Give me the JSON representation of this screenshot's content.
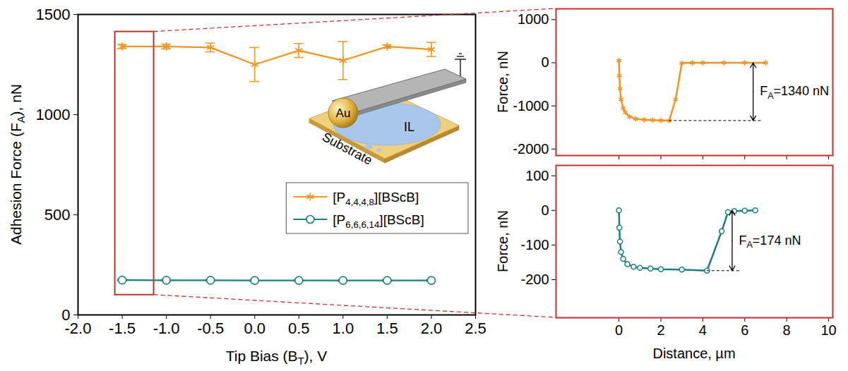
{
  "chart_data": [
    {
      "type": "line",
      "x_label": "Tip Bias (BT), V",
      "y_label": "Adhesion Force (FA), nN",
      "x": [
        -1.5,
        -1,
        -0.5,
        0,
        0.5,
        1,
        1.5,
        2
      ],
      "xlim": [
        -2,
        2.5
      ],
      "xticks": [
        {
          "value": -2,
          "label": "-2.0"
        },
        {
          "value": -1.5,
          "label": "-1.5"
        },
        {
          "value": -1,
          "label": "-1.0"
        },
        {
          "value": -0.5,
          "label": "-0.5"
        },
        {
          "value": 0,
          "label": "0.0"
        },
        {
          "value": 0.5,
          "label": "0.5"
        },
        {
          "value": 1,
          "label": "1.0"
        },
        {
          "value": 1.5,
          "label": "1.5"
        },
        {
          "value": 2,
          "label": "2.0"
        },
        {
          "value": 2.5,
          "label": "2.5"
        }
      ],
      "ylim": [
        0,
        1500
      ],
      "yticks": [
        0,
        500,
        1000,
        1500
      ],
      "legend": "lower right",
      "series": [
        {
          "name": "[P4,4,4,8][BScB]",
          "color": "#F7931E",
          "marker": "asterisk",
          "values": [
            1340,
            1340,
            1335,
            1250,
            1320,
            1270,
            1340,
            1325
          ],
          "errors": [
            10,
            12,
            22,
            85,
            35,
            95,
            8,
            35
          ]
        },
        {
          "name": "[P6,6,6,14][BScB]",
          "color": "#1A7F7F",
          "marker": "open-circle",
          "values": [
            174,
            173,
            173,
            172,
            172,
            172,
            172,
            172
          ],
          "errors": [
            4,
            4,
            4,
            4,
            4,
            4,
            4,
            4
          ]
        }
      ],
      "inset_labels": {
        "tip": "Au",
        "liquid": "IL",
        "substrate": "Substrate"
      }
    },
    {
      "type": "line",
      "y_label": "Force, nN",
      "tick_labels": "y",
      "x": [
        0,
        0.02,
        0.05,
        0.1,
        0.2,
        0.3,
        0.5,
        0.8,
        1.2,
        1.6,
        2.0,
        2.4,
        2.7,
        3.0,
        3.5,
        4,
        5,
        6,
        7
      ],
      "xlim": [
        -3,
        10.2
      ],
      "xticks": [
        0,
        2,
        4,
        6,
        8,
        10
      ],
      "ylim": [
        -2150,
        1250
      ],
      "yticks": [
        -2000,
        -1000,
        0,
        1000
      ],
      "series": [
        {
          "color": "#F7931E",
          "marker": "asterisk",
          "values": [
            50,
            -300,
            -600,
            -850,
            -1050,
            -1150,
            -1250,
            -1300,
            -1320,
            -1330,
            -1335,
            -1340,
            -850,
            -10,
            0,
            0,
            0,
            0,
            0
          ]
        }
      ],
      "annotations": [
        {
          "text": "FA=1340 nN",
          "x": 6.4,
          "y1": 0,
          "y2": -1340
        }
      ]
    },
    {
      "type": "line",
      "x_label": "Distance, µm",
      "y_label": "Force, nN",
      "x": [
        0,
        0.02,
        0.05,
        0.1,
        0.2,
        0.4,
        0.7,
        1,
        1.5,
        2,
        3,
        4.2,
        4.9,
        5.2,
        5.5,
        6,
        6.5
      ],
      "xlim": [
        -3,
        10.2
      ],
      "xticks": [
        0,
        2,
        4,
        6,
        8,
        10
      ],
      "ylim": [
        -310,
        130
      ],
      "yticks": [
        -200,
        -100,
        0,
        100
      ],
      "series": [
        {
          "color": "#1A7F7F",
          "marker": "open-circle",
          "values": [
            0,
            -50,
            -90,
            -120,
            -140,
            -155,
            -163,
            -166,
            -168,
            -170,
            -171,
            -174,
            -60,
            -5,
            -2,
            -1,
            0
          ]
        }
      ],
      "annotations": [
        {
          "text": "FA=174 nN",
          "x": 5.4,
          "y1": 0,
          "y2": -174
        }
      ]
    }
  ]
}
